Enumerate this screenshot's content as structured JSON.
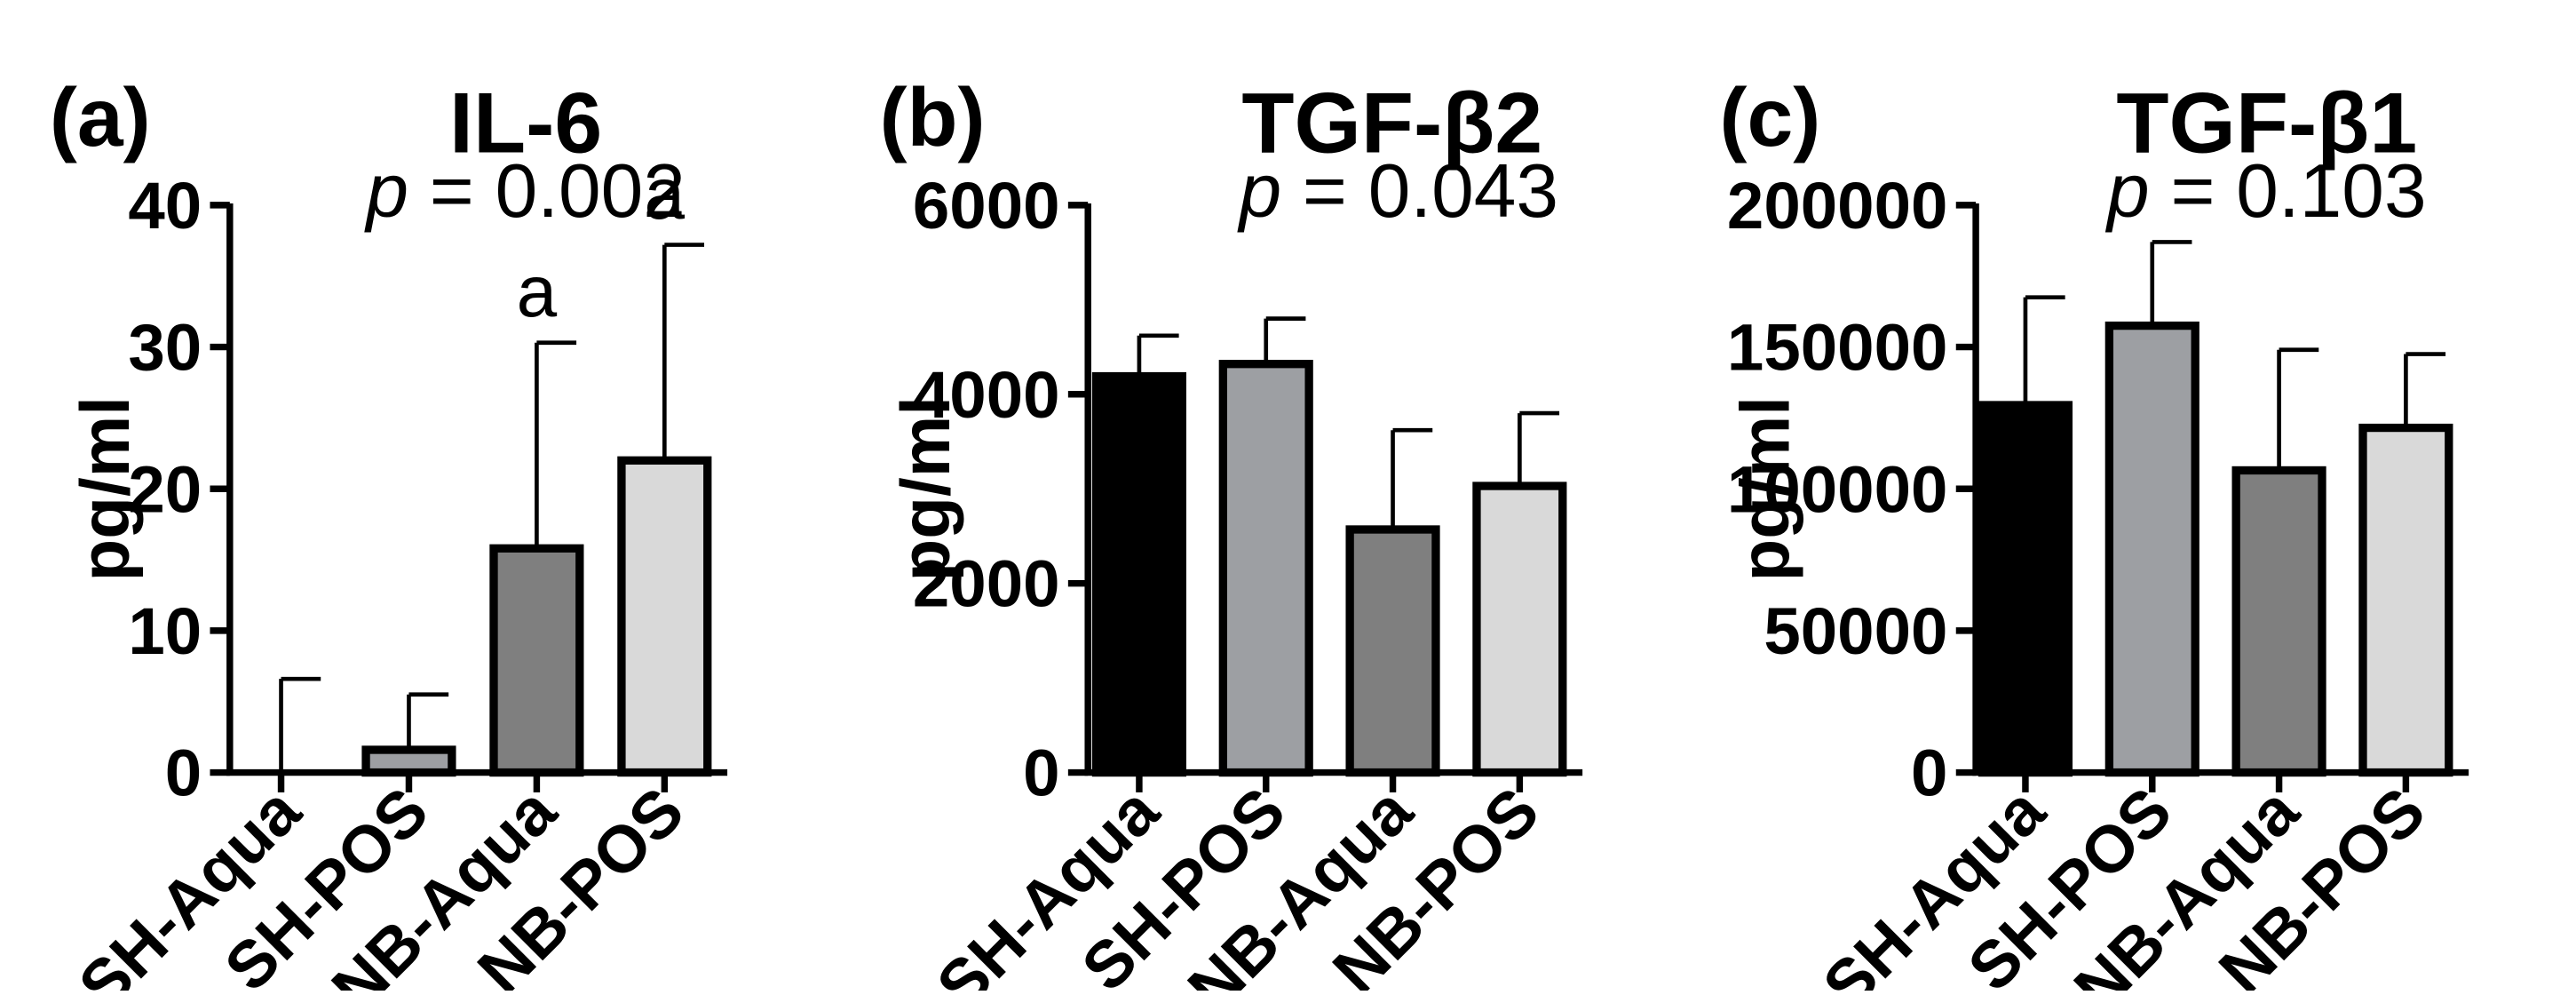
{
  "chart_data": [
    {
      "type": "bar",
      "panel_label": "(a)",
      "title": "IL-6",
      "p_label": "p",
      "p_text": " = 0.002",
      "ylabel": "pg/ml",
      "xlabel": "",
      "ylim": [
        0,
        40
      ],
      "yticks": [
        0,
        10,
        20,
        30,
        40
      ],
      "ytick_labels": [
        "0",
        "10",
        "20",
        "30",
        "40"
      ],
      "categories": [
        "SH-Aqua",
        "SH-POS",
        "NB-Aqua",
        "NB-POS"
      ],
      "values": [
        0,
        1.6,
        15.8,
        22.0
      ],
      "error_upper": [
        6.6,
        5.5,
        30.3,
        37.2
      ],
      "significance": [
        "",
        "",
        "a",
        "a"
      ],
      "colors": [
        "#000000",
        "#9d9fa3",
        "#7f7f7f",
        "#d9d9d9"
      ]
    },
    {
      "type": "bar",
      "panel_label": "(b)",
      "title": "TGF-β2",
      "p_label": "p",
      "p_text": " = 0.043",
      "ylabel": "pg/ml",
      "xlabel": "",
      "ylim": [
        0,
        6000
      ],
      "yticks": [
        0,
        2000,
        4000,
        6000
      ],
      "ytick_labels": [
        "0",
        "2000",
        "4000",
        "6000"
      ],
      "categories": [
        "SH-Aqua",
        "SH-POS",
        "NB-Aqua",
        "NB-POS"
      ],
      "values": [
        4190,
        4320,
        2570,
        3030
      ],
      "error_upper": [
        4620,
        4800,
        3620,
        3800
      ],
      "significance": [
        "",
        "",
        "",
        ""
      ],
      "colors": [
        "#000000",
        "#9d9fa3",
        "#7f7f7f",
        "#d9d9d9"
      ]
    },
    {
      "type": "bar",
      "panel_label": "(c)",
      "title": "TGF-β1",
      "p_label": "p",
      "p_text": " = 0.103",
      "ylabel": "pg/ml",
      "xlabel": "",
      "ylim": [
        0,
        200000
      ],
      "yticks": [
        0,
        50000,
        100000,
        150000,
        200000
      ],
      "ytick_labels": [
        "0",
        "50000",
        "100000",
        "150000",
        "200000"
      ],
      "categories": [
        "SH-Aqua",
        "SH-POS",
        "NB-Aqua",
        "NB-POS"
      ],
      "values": [
        129500,
        157500,
        106500,
        121500
      ],
      "error_upper": [
        167500,
        187000,
        149000,
        147500
      ],
      "significance": [
        "",
        "",
        "",
        ""
      ],
      "colors": [
        "#000000",
        "#9d9fa3",
        "#7f7f7f",
        "#d9d9d9"
      ]
    }
  ]
}
